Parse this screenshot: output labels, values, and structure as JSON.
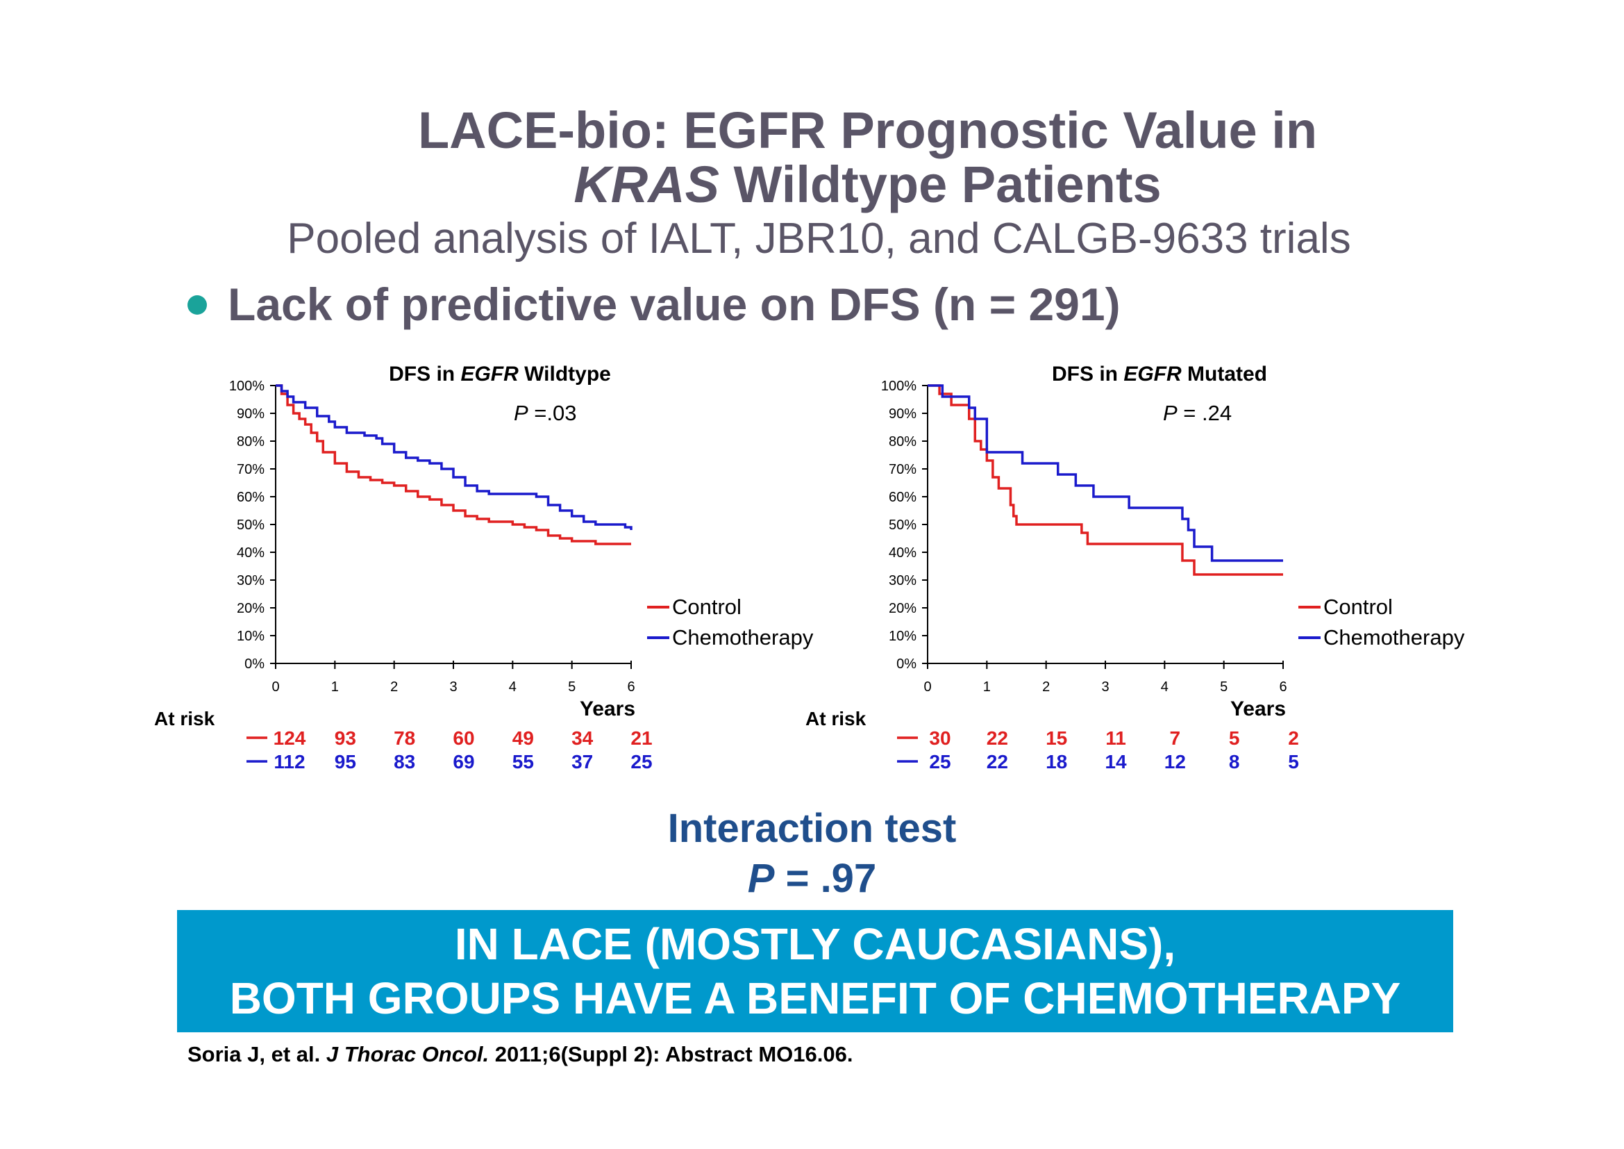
{
  "title": {
    "line1": "LACE-bio: EGFR Prognostic Value in",
    "line2_italic": "KRAS",
    "line2_rest": " Wildtype Patients"
  },
  "subtitle": "Pooled analysis of IALT, JBR10, and CALGB-9633 trials",
  "bullet": "Lack of predictive value on DFS (n = 291)",
  "colors": {
    "control": "#e02020",
    "chemo": "#1a1acc",
    "banner": "#0099cc",
    "title": "#5a5567",
    "interaction": "#1f4e8c"
  },
  "chart_data": [
    {
      "type": "line",
      "title_prefix": "DFS in ",
      "title_italic": "EGFR",
      "title_suffix": " Wildtype",
      "p_italic": "P",
      "p_rest": " =.03",
      "xlabel": "Years",
      "xlim": [
        0,
        6
      ],
      "ylim": [
        0,
        100
      ],
      "xticks": [
        "0",
        "1",
        "2",
        "3",
        "4",
        "5",
        "6"
      ],
      "yticks": [
        "0%",
        "10%",
        "20%",
        "30%",
        "40%",
        "50%",
        "60%",
        "70%",
        "80%",
        "90%",
        "100%"
      ],
      "legend": [
        "Control",
        "Chemotherapy"
      ],
      "series": [
        {
          "name": "Control",
          "x": [
            0,
            0.1,
            0.2,
            0.3,
            0.4,
            0.5,
            0.6,
            0.7,
            0.8,
            1.0,
            1.2,
            1.4,
            1.6,
            1.8,
            2.0,
            2.2,
            2.4,
            2.6,
            2.8,
            3.0,
            3.2,
            3.4,
            3.6,
            3.8,
            4.0,
            4.2,
            4.4,
            4.6,
            4.8,
            5.0,
            5.2,
            5.4,
            5.6,
            5.8,
            6.0
          ],
          "y": [
            100,
            97,
            93,
            90,
            88,
            86,
            83,
            80,
            76,
            72,
            69,
            67,
            66,
            65,
            64,
            62,
            60,
            59,
            57,
            55,
            53,
            52,
            51,
            51,
            50,
            49,
            48,
            46,
            45,
            44,
            44,
            43,
            43,
            43,
            43
          ]
        },
        {
          "name": "Chemotherapy",
          "x": [
            0,
            0.1,
            0.2,
            0.3,
            0.5,
            0.7,
            0.9,
            1.0,
            1.2,
            1.5,
            1.7,
            1.8,
            2.0,
            2.2,
            2.4,
            2.6,
            2.8,
            3.0,
            3.2,
            3.4,
            3.6,
            3.8,
            4.0,
            4.2,
            4.4,
            4.6,
            4.8,
            5.0,
            5.2,
            5.4,
            5.6,
            5.8,
            5.9,
            6.0
          ],
          "y": [
            100,
            98,
            96,
            94,
            92,
            89,
            87,
            85,
            83,
            82,
            81,
            79,
            76,
            74,
            73,
            72,
            70,
            67,
            64,
            62,
            61,
            61,
            61,
            61,
            60,
            57,
            55,
            53,
            51,
            50,
            50,
            50,
            49,
            48
          ]
        }
      ],
      "at_risk": {
        "label": "At risk",
        "control": [
          "124",
          "93",
          "78",
          "60",
          "49",
          "34",
          "21"
        ],
        "chemo": [
          "112",
          "95",
          "83",
          "69",
          "55",
          "37",
          "25"
        ]
      }
    },
    {
      "type": "line",
      "title_prefix": "DFS in ",
      "title_italic": "EGFR",
      "title_suffix": " Mutated",
      "p_italic": "P",
      "p_rest": " = .24",
      "xlabel": "Years",
      "xlim": [
        0,
        6
      ],
      "ylim": [
        0,
        100
      ],
      "xticks": [
        "0",
        "1",
        "2",
        "3",
        "4",
        "5",
        "6"
      ],
      "yticks": [
        "0%",
        "10%",
        "20%",
        "30%",
        "40%",
        "50%",
        "60%",
        "70%",
        "80%",
        "90%",
        "100%"
      ],
      "legend": [
        "Control",
        "Chemotherapy"
      ],
      "series": [
        {
          "name": "Control",
          "x": [
            0,
            0.2,
            0.4,
            0.7,
            0.8,
            0.9,
            1.0,
            1.1,
            1.2,
            1.4,
            1.45,
            1.5,
            2.0,
            2.5,
            2.6,
            2.7,
            3.0,
            4.0,
            4.3,
            4.5,
            5.0,
            6.0
          ],
          "y": [
            100,
            97,
            93,
            88,
            80,
            77,
            73,
            67,
            63,
            57,
            53,
            50,
            50,
            50,
            47,
            43,
            43,
            43,
            37,
            32,
            32,
            32
          ]
        },
        {
          "name": "Chemotherapy",
          "x": [
            0,
            0.25,
            0.4,
            0.7,
            0.8,
            1.0,
            1.4,
            1.6,
            2.0,
            2.2,
            2.5,
            2.8,
            3.0,
            3.4,
            3.8,
            4.2,
            4.3,
            4.4,
            4.5,
            4.8,
            5.0,
            6.0
          ],
          "y": [
            100,
            96,
            96,
            92,
            88,
            76,
            76,
            72,
            72,
            68,
            64,
            60,
            60,
            56,
            56,
            56,
            52,
            48,
            42,
            37,
            37,
            37
          ]
        }
      ],
      "at_risk": {
        "label": "At risk",
        "control": [
          "30",
          "22",
          "15",
          "11",
          "7",
          "5",
          "2"
        ],
        "chemo": [
          "25",
          "22",
          "18",
          "14",
          "12",
          "8",
          "5"
        ]
      }
    }
  ],
  "interaction": {
    "line1": "Interaction test",
    "p_italic": "P",
    "p_rest": " = .97"
  },
  "banner": {
    "line1": "IN LACE (MOSTLY CAUCASIANS),",
    "line2": "BOTH GROUPS HAVE A BENEFIT  OF CHEMOTHERAPY"
  },
  "citation": {
    "part1": "Soria J, et al. ",
    "journal": "J Thorac Oncol.",
    "part2": " 2011;6(Suppl 2): Abstract MO16.06."
  }
}
